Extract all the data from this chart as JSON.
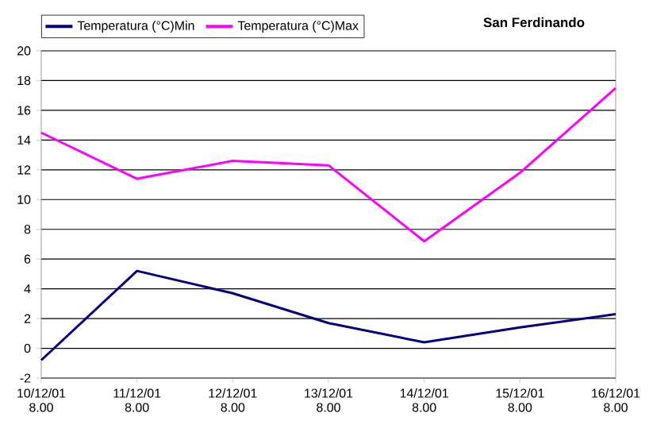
{
  "chart_data": {
    "type": "line",
    "title": "San Ferdinando",
    "categories": [
      "10/12/01 8.00",
      "11/12/01 8.00",
      "12/12/01 8.00",
      "13/12/01 8.00",
      "14/12/01 8.00",
      "15/12/01 8.00",
      "16/12/01 8.00"
    ],
    "series": [
      {
        "name": "Temperatura (°C)Min",
        "color": "#000080",
        "values": [
          -0.8,
          5.2,
          3.7,
          1.7,
          0.4,
          1.4,
          2.3
        ]
      },
      {
        "name": "Temperatura (°C)Max",
        "color": "#ff00ff",
        "values": [
          14.5,
          11.4,
          12.6,
          12.3,
          7.2,
          11.8,
          17.5
        ]
      }
    ],
    "ylim": [
      -2,
      20
    ],
    "yticks": [
      -2,
      0,
      2,
      4,
      6,
      8,
      10,
      12,
      14,
      16,
      18,
      20
    ],
    "grid": "y",
    "legend": "top left",
    "marker": "none",
    "line_style": "solid"
  }
}
